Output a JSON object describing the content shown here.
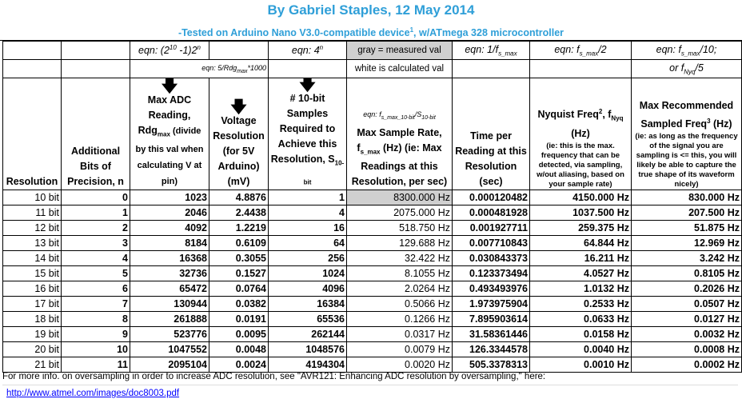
{
  "title": "By Gabriel Staples, 12 May 2014",
  "subtitle": "-Tested on Arduino Nano V3.0-compatible device",
  "subtitle_sup": "1",
  "subtitle_end": ", w/ATmega 328 microcontroller",
  "eqn_row": {
    "c2": "eqn: (2",
    "c2_sup1": "10",
    "c2_mid": " -1)2",
    "c2_sup2": "n",
    "c4": "eqn: 4",
    "c4_sup": "n",
    "c5": "gray = measured val",
    "c6": "eqn: 1/f",
    "c6_sub": "s_max",
    "c7": "eqn: f",
    "c7_sub": "s_max",
    "c7_end": "/2",
    "c8": "eqn: f",
    "c8_sub": "s_max",
    "c8_end": "/10;"
  },
  "eqn_row2": {
    "c3": "eqn: 5/Rdg",
    "c3_sub": "max",
    "c3_end": "*1000",
    "c5": "white is calculated val",
    "c8": "or f",
    "c8_sub": "Nyq",
    "c8_end": "/5"
  },
  "eqn_row3": {
    "c5": "eqn: f",
    "c5_sub": "s_max_10-bit",
    "c5_mid": "/S",
    "c5_sub2": "10-bit"
  },
  "headers": {
    "resolution": "Resolution",
    "bits": "Additional Bits of Precision, n",
    "maxadc": "Max ADC Reading, Rdg",
    "maxadc_sub": "max",
    "maxadc_end": " (divide by this val when calculating V at pin)",
    "volt": "Voltage Resolution (for 5V Arduino) (mV)",
    "samples": "# 10-bit Samples Required to Achieve this Resolution, S",
    "samples_sub": "10-bit",
    "rate": "Max Sample Rate, f",
    "rate_sub": "s_max",
    "rate_end": " (Hz) (ie: Max Readings at this Resolution, per sec)",
    "time": "Time per Reading at this Resolution (sec)",
    "nyq": "Nyquist Freq",
    "nyq_sup": "2",
    "nyq_mid": ", f",
    "nyq_sub": "Nyq",
    "nyq_end": " (Hz)",
    "nyq_note": "(ie: this is the max. frequency that can be detected, via sampling, w/out aliasing, based on your sample rate)",
    "rec": "Max Recommended Sampled Freq",
    "rec_sup": "3",
    "rec_end": " (Hz)",
    "rec_note": "(ie: as long as the frequency of the signal you are sampling is <= this, you will likely be able to capture the true shape of its waveform nicely)"
  },
  "rows": [
    {
      "res": "10 bit",
      "n": "0",
      "adc": "1023",
      "mv": "4.8876",
      "s": "1",
      "rate": "8300.000 Hz",
      "t": "0.000120482",
      "nyq": "4150.000 Hz",
      "rec": "830.000 Hz"
    },
    {
      "res": "11 bit",
      "n": "1",
      "adc": "2046",
      "mv": "2.4438",
      "s": "4",
      "rate": "2075.000 Hz",
      "t": "0.000481928",
      "nyq": "1037.500 Hz",
      "rec": "207.500 Hz"
    },
    {
      "res": "12 bit",
      "n": "2",
      "adc": "4092",
      "mv": "1.2219",
      "s": "16",
      "rate": "518.750 Hz",
      "t": "0.001927711",
      "nyq": "259.375 Hz",
      "rec": "51.875 Hz"
    },
    {
      "res": "13 bit",
      "n": "3",
      "adc": "8184",
      "mv": "0.6109",
      "s": "64",
      "rate": "129.688 Hz",
      "t": "0.007710843",
      "nyq": "64.844 Hz",
      "rec": "12.969 Hz"
    },
    {
      "res": "14 bit",
      "n": "4",
      "adc": "16368",
      "mv": "0.3055",
      "s": "256",
      "rate": "32.422 Hz",
      "t": "0.030843373",
      "nyq": "16.211 Hz",
      "rec": "3.242 Hz"
    },
    {
      "res": "15 bit",
      "n": "5",
      "adc": "32736",
      "mv": "0.1527",
      "s": "1024",
      "rate": "8.1055 Hz",
      "t": "0.123373494",
      "nyq": "4.0527 Hz",
      "rec": "0.8105 Hz"
    },
    {
      "res": "16 bit",
      "n": "6",
      "adc": "65472",
      "mv": "0.0764",
      "s": "4096",
      "rate": "2.0264 Hz",
      "t": "0.493493976",
      "nyq": "1.0132 Hz",
      "rec": "0.2026 Hz"
    },
    {
      "res": "17 bit",
      "n": "7",
      "adc": "130944",
      "mv": "0.0382",
      "s": "16384",
      "rate": "0.5066 Hz",
      "t": "1.973975904",
      "nyq": "0.2533 Hz",
      "rec": "0.0507 Hz"
    },
    {
      "res": "18 bit",
      "n": "8",
      "adc": "261888",
      "mv": "0.0191",
      "s": "65536",
      "rate": "0.1266 Hz",
      "t": "7.895903614",
      "nyq": "0.0633 Hz",
      "rec": "0.0127 Hz"
    },
    {
      "res": "19 bit",
      "n": "9",
      "adc": "523776",
      "mv": "0.0095",
      "s": "262144",
      "rate": "0.0317 Hz",
      "t": "31.58361446",
      "nyq": "0.0158 Hz",
      "rec": "0.0032 Hz"
    },
    {
      "res": "20 bit",
      "n": "10",
      "adc": "1047552",
      "mv": "0.0048",
      "s": "1048576",
      "rate": "0.0079 Hz",
      "t": "126.3344578",
      "nyq": "0.0040 Hz",
      "rec": "0.0008 Hz"
    },
    {
      "res": "21 bit",
      "n": "11",
      "adc": "2095104",
      "mv": "0.0024",
      "s": "4194304",
      "rate": "0.0020 Hz",
      "t": "505.3378313",
      "nyq": "0.0010 Hz",
      "rec": "0.0002 Hz"
    }
  ],
  "footer": {
    "text": "For more info. on oversampling in order to increase ADC resolution, see \"AVR121: Enhancing ADC resolution by oversampling,\" here:",
    "link": "http://www.atmel.com/images/doc8003.pdf"
  },
  "colors": {
    "title": "#2f9fd8",
    "measured_gray": "#d0d0d0",
    "link": "#0000ff"
  }
}
